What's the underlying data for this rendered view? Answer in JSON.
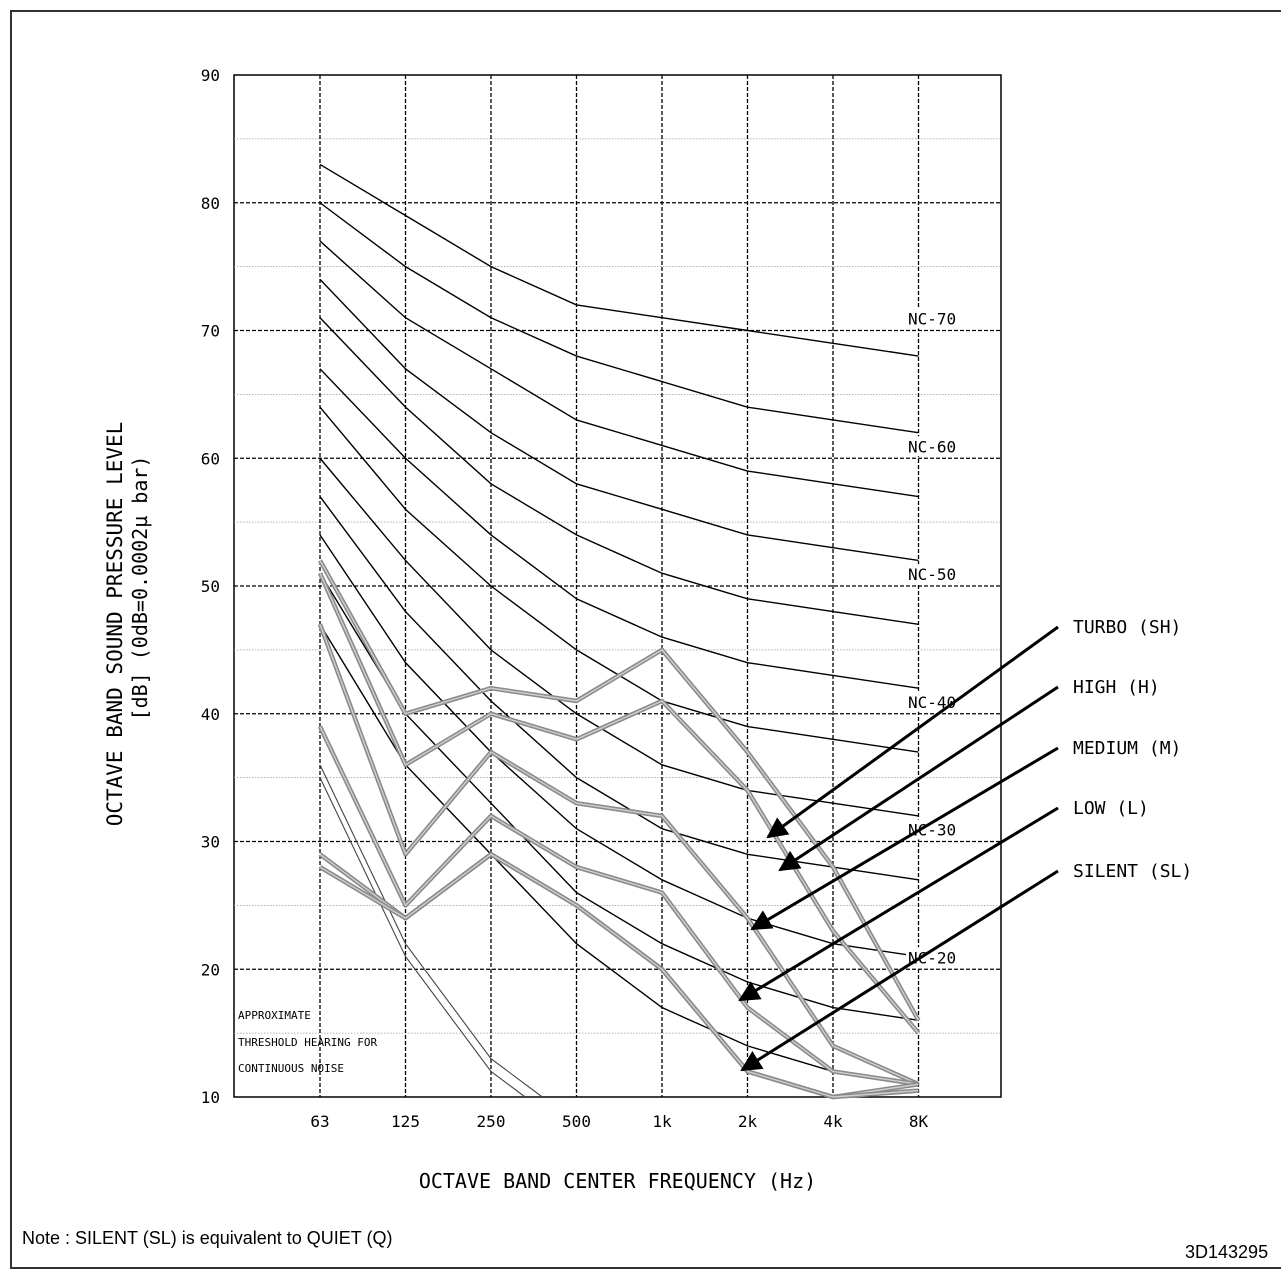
{
  "chart_data": {
    "type": "line",
    "xlabel": "OCTAVE BAND CENTER FREQUENCY  (Hz)",
    "ylabel_line1": "OCTAVE BAND SOUND PRESSURE LEVEL",
    "ylabel_line2": "[dB]  (0dB=0.0002µ bar)",
    "x_categories": [
      "63",
      "125",
      "250",
      "500",
      "1k",
      "2k",
      "4k",
      "8K"
    ],
    "y_ticks": [
      10,
      20,
      30,
      40,
      50,
      60,
      70,
      80,
      90
    ],
    "ylim": [
      10,
      90
    ],
    "grid": true,
    "nc_curves": [
      {
        "values": [
          83,
          79,
          75,
          72,
          71,
          70,
          69,
          68
        ]
      },
      {
        "values": [
          80,
          75,
          71,
          68,
          66,
          64,
          63,
          62
        ]
      },
      {
        "values": [
          77,
          71,
          67,
          63,
          61,
          59,
          58,
          57
        ]
      },
      {
        "values": [
          74,
          67,
          62,
          58,
          56,
          54,
          53,
          52
        ]
      },
      {
        "values": [
          71,
          64,
          58,
          54,
          51,
          49,
          48,
          47
        ]
      },
      {
        "values": [
          67,
          60,
          54,
          49,
          46,
          44,
          43,
          42
        ]
      },
      {
        "values": [
          64,
          56,
          50,
          45,
          41,
          39,
          38,
          37
        ]
      },
      {
        "values": [
          60,
          52,
          45,
          40,
          36,
          34,
          33,
          32
        ]
      },
      {
        "values": [
          57,
          48,
          41,
          35,
          31,
          29,
          28,
          27
        ]
      },
      {
        "values": [
          54,
          44,
          37,
          31,
          27,
          24,
          22,
          21
        ]
      },
      {
        "values": [
          51,
          40,
          33,
          26,
          22,
          19,
          17,
          16
        ]
      },
      {
        "values": [
          47,
          36,
          29,
          22,
          17,
          14,
          12,
          11
        ]
      }
    ],
    "nc_labels": [
      {
        "text": "NC-70",
        "value": 70
      },
      {
        "text": "NC-60",
        "value": 60
      },
      {
        "text": "NC-50",
        "value": 50
      },
      {
        "text": "NC-40",
        "value": 40
      },
      {
        "text": "NC-30",
        "value": 30
      },
      {
        "text": "NC-20",
        "value": 20
      }
    ],
    "threshold_label": [
      "APPROXIMATE",
      "THRESHOLD HEARING  FOR",
      "CONTINUOUS NOISE"
    ],
    "threshold_curves": [
      {
        "values": [
          36,
          22,
          13,
          8
        ]
      },
      {
        "values": [
          35,
          21,
          12,
          7
        ]
      }
    ],
    "series": [
      {
        "name": "TURBO (SH)",
        "values": [
          52,
          40,
          42,
          41,
          45,
          37,
          28,
          16
        ]
      },
      {
        "name": "HIGH (H)",
        "values": [
          51,
          36,
          40,
          38,
          41,
          34,
          23,
          15
        ]
      },
      {
        "name": "MEDIUM (M)",
        "values": [
          47,
          29,
          37,
          33,
          32,
          24,
          14,
          11
        ]
      },
      {
        "name": "LOW (L)",
        "values": [
          39,
          25,
          32,
          28,
          26,
          17,
          12,
          11
        ]
      },
      {
        "name": "SILENT (SL)",
        "values": [
          29,
          24,
          29,
          25,
          20,
          12,
          10,
          11
        ]
      },
      {
        "values": [
          28,
          24,
          29,
          25,
          20,
          12,
          10,
          10.5
        ]
      }
    ],
    "series_color": "#8a8a8a",
    "nc_color": "#000000"
  },
  "note": "Note : SILENT (SL) is equivalent to QUIET (Q)",
  "doc_id": "3D143295"
}
